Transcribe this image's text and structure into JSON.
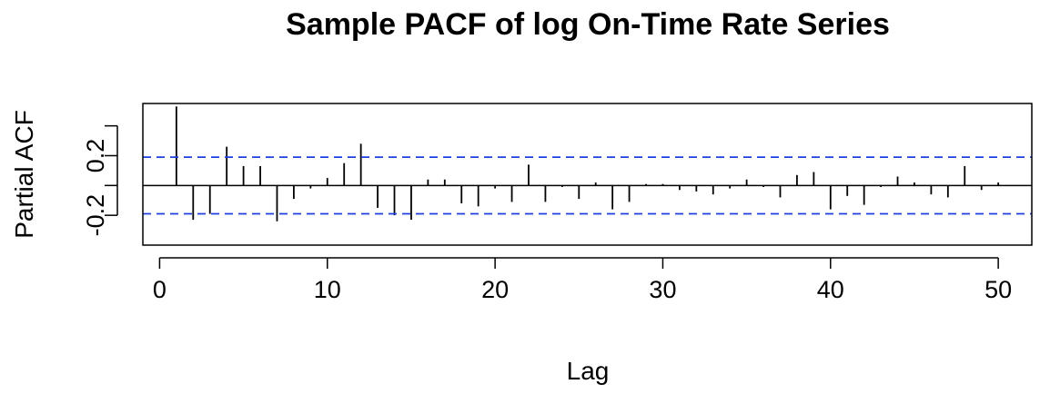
{
  "chart_data": {
    "type": "bar",
    "title": "Sample PACF of log On-Time Rate Series",
    "xlabel": "Lag",
    "ylabel": "Partial ACF",
    "xlim": [
      -1,
      52
    ],
    "ylim": [
      -0.4,
      0.55
    ],
    "xticks": [
      0,
      10,
      20,
      30,
      40,
      50
    ],
    "xtick_labels": [
      "0",
      "10",
      "20",
      "30",
      "40",
      "50"
    ],
    "yticks": [
      -0.2,
      0.0,
      0.2,
      0.4
    ],
    "ytick_labels": [
      "-0.2",
      "",
      "0.2",
      ""
    ],
    "confidence_bound": 0.19,
    "confidence_color": "#1f3fe0",
    "bar_color": "#000000",
    "grid": false,
    "x": [
      1,
      2,
      3,
      4,
      5,
      6,
      7,
      8,
      9,
      10,
      11,
      12,
      13,
      14,
      15,
      16,
      17,
      18,
      19,
      20,
      21,
      22,
      23,
      24,
      25,
      26,
      27,
      28,
      29,
      30,
      31,
      32,
      33,
      34,
      35,
      36,
      37,
      38,
      39,
      40,
      41,
      42,
      43,
      44,
      45,
      46,
      47,
      48,
      49,
      50
    ],
    "values": [
      0.53,
      -0.23,
      -0.19,
      0.26,
      0.13,
      0.13,
      -0.24,
      -0.09,
      -0.02,
      0.05,
      0.15,
      0.28,
      -0.15,
      -0.2,
      -0.23,
      0.04,
      0.04,
      -0.12,
      -0.14,
      -0.02,
      -0.11,
      0.14,
      -0.11,
      -0.01,
      -0.09,
      0.02,
      -0.16,
      -0.11,
      0.01,
      0.01,
      -0.03,
      -0.04,
      -0.06,
      -0.02,
      0.04,
      -0.01,
      -0.08,
      0.07,
      0.09,
      -0.16,
      -0.07,
      -0.13,
      -0.01,
      0.06,
      0.02,
      -0.06,
      -0.08,
      0.13,
      -0.03,
      0.02
    ]
  }
}
